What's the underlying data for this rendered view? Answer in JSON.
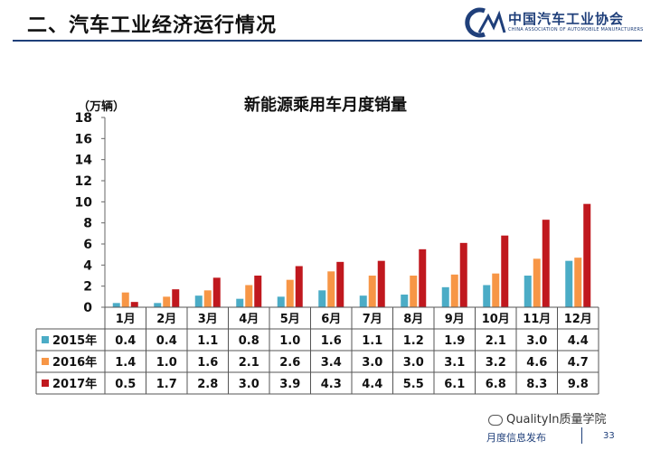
{
  "header": {
    "title": "二、汽车工业经济运行情况",
    "logo_cn": "中国汽车工业协会",
    "logo_en": "CHINA ASSOCIATION OF AUTOMOBILE MANUFACTURERS"
  },
  "footer": {
    "watermark": "QualityIn质量学院",
    "release": "月度信息发布",
    "page": "33"
  },
  "colors": {
    "s2015": "#4bacc6",
    "s2016": "#f79646",
    "s2017": "#c0181e",
    "accent": "#1f3f7a"
  },
  "chart_data": {
    "type": "bar",
    "title": "新能源乘用车月度销量",
    "ylabel": "（万辆）",
    "ylim": [
      0,
      18
    ],
    "yticks": [
      0,
      2,
      4,
      6,
      8,
      10,
      12,
      14,
      16,
      18
    ],
    "categories": [
      "1月",
      "2月",
      "3月",
      "4月",
      "5月",
      "6月",
      "7月",
      "8月",
      "9月",
      "10月",
      "11月",
      "12月"
    ],
    "series": [
      {
        "name": "2015年",
        "values": [
          0.4,
          0.4,
          1.1,
          0.8,
          1.0,
          1.6,
          1.1,
          1.2,
          1.9,
          2.1,
          3.0,
          4.4
        ]
      },
      {
        "name": "2016年",
        "values": [
          1.4,
          1.0,
          1.6,
          2.1,
          2.6,
          3.4,
          3.0,
          3.0,
          3.1,
          3.2,
          4.6,
          4.7
        ]
      },
      {
        "name": "2017年",
        "values": [
          0.5,
          1.7,
          2.8,
          3.0,
          3.9,
          4.3,
          4.4,
          5.5,
          6.1,
          6.8,
          8.3,
          9.8
        ]
      }
    ]
  }
}
